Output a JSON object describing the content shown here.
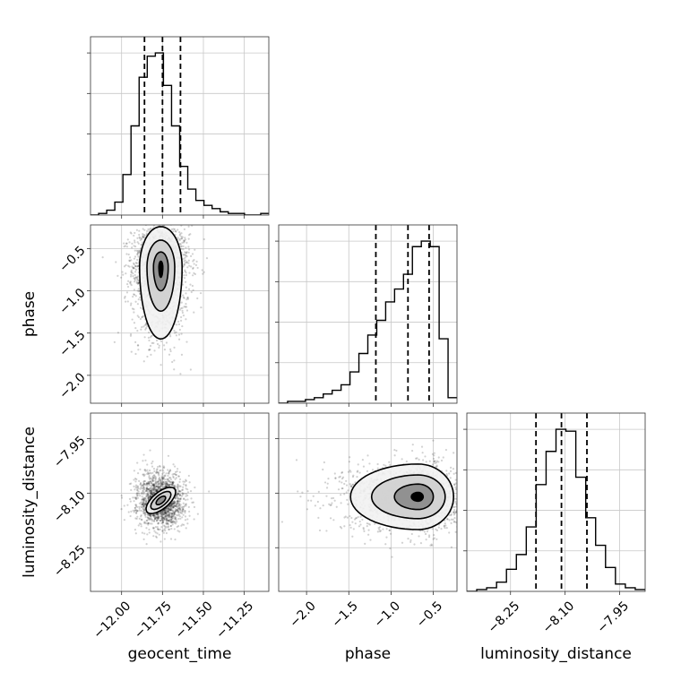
{
  "chart_data": {
    "type": "corner",
    "parameters": [
      {
        "name": "geocent_time",
        "range": [
          -12.19,
          -11.1
        ],
        "ticks": [
          -12.0,
          -11.75,
          -11.5,
          -11.25
        ],
        "tick_labels": [
          "−12.00",
          "−11.75",
          "−11.50",
          "−11.25"
        ],
        "quantiles": [
          -11.86,
          -11.75,
          -11.64
        ],
        "hist_counts": [
          0,
          1,
          3,
          8,
          25,
          55,
          85,
          98,
          100,
          80,
          55,
          30,
          16,
          9,
          6,
          4,
          2,
          1,
          1,
          0,
          0,
          1
        ]
      },
      {
        "name": "phase",
        "range": [
          -2.33,
          -0.22
        ],
        "ticks": [
          -2.0,
          -1.5,
          -1.0,
          -0.5
        ],
        "tick_labels": [
          "−2.0",
          "−1.5",
          "−1.0",
          "−0.5"
        ],
        "quantiles": [
          -1.18,
          -0.8,
          -0.55
        ],
        "hist_counts": [
          0,
          1,
          1,
          2,
          3,
          5,
          7,
          10,
          17,
          27,
          37,
          45,
          55,
          62,
          70,
          85,
          88,
          85,
          35,
          3
        ]
      },
      {
        "name": "luminosity_distance",
        "range": [
          -8.37,
          -7.88
        ],
        "ticks": [
          -8.25,
          -8.1,
          -7.95
        ],
        "tick_labels": [
          "−8.25",
          "−8.10",
          "−7.95"
        ],
        "quantiles": [
          -8.18,
          -8.11,
          -8.04
        ],
        "hist_counts": [
          0,
          1,
          2,
          5,
          12,
          20,
          35,
          58,
          76,
          88,
          87,
          62,
          40,
          25,
          13,
          4,
          2,
          1
        ]
      }
    ],
    "pairs": [
      {
        "x": "geocent_time",
        "y": "phase",
        "center": [
          -11.76,
          -0.72
        ],
        "contour_levels": [
          {
            "rx": 0.13,
            "ry_low": 0.85,
            "ry_high": 0.48
          },
          {
            "rx": 0.085,
            "ry_low": 0.52,
            "ry_high": 0.32
          },
          {
            "rx": 0.045,
            "ry_low": 0.28,
            "ry_high": 0.18
          },
          {
            "rx": 0.012,
            "ry_low": 0.12,
            "ry_high": 0.07
          }
        ],
        "scatter_spread": [
          0.16,
          0.45
        ]
      },
      {
        "x": "geocent_time",
        "y": "luminosity_distance",
        "center": [
          -11.76,
          -8.12
        ],
        "rotation_deg": -40,
        "contour_levels": [
          {
            "rx": 0.11,
            "ry": 0.05
          },
          {
            "rx": 0.075,
            "ry": 0.033
          },
          {
            "rx": 0.035,
            "ry": 0.017
          }
        ],
        "scatter_spread": [
          0.16,
          0.085
        ]
      },
      {
        "x": "phase",
        "y": "luminosity_distance",
        "center": [
          -0.68,
          -8.11
        ],
        "contour_levels": [
          {
            "rx_left": 0.8,
            "rx_right": 0.42,
            "ry": 0.09
          },
          {
            "rx_left": 0.55,
            "rx_right": 0.32,
            "ry": 0.06
          },
          {
            "rx_left": 0.28,
            "rx_right": 0.18,
            "ry": 0.035
          },
          {
            "rx_left": 0.08,
            "rx_right": 0.06,
            "ry": 0.012
          }
        ],
        "scatter_spread": [
          0.45,
          0.085
        ]
      }
    ],
    "grid": true
  }
}
